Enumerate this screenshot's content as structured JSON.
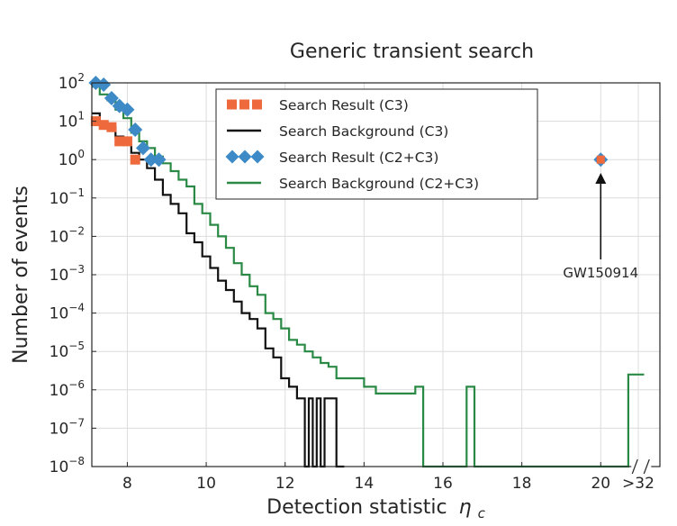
{
  "chart_data": {
    "type": "line",
    "title": "Generic transient search",
    "xlabel": "Detection statistic",
    "xlabel_symbol": "η",
    "xlabel_subscript": "c",
    "ylabel": "Number of events",
    "y_scale": "log",
    "xlim": [
      7.1,
      21.5
    ],
    "ylim": [
      1e-08,
      100
    ],
    "x_ticks": [
      8,
      10,
      12,
      14,
      16,
      18,
      20
    ],
    "x_tick_labels": [
      "8",
      "10",
      "12",
      "14",
      "16",
      "18",
      "20"
    ],
    "x_break_label": ">32",
    "y_tick_exponents": [
      -8,
      -7,
      -6,
      -5,
      -4,
      -3,
      -2,
      -1,
      0,
      1,
      2
    ],
    "grid": true,
    "legend_position": "top-center",
    "series": [
      {
        "name": "Search Result (C3)",
        "kind": "markers",
        "marker": "square",
        "color": "#ee6a3c",
        "x": [
          7.2,
          7.4,
          7.6,
          7.8,
          8.0,
          8.2
        ],
        "y": [
          10,
          8,
          7,
          3,
          3,
          1
        ]
      },
      {
        "name": "Search Background (C3)",
        "kind": "step",
        "color": "#111111",
        "x": [
          7.1,
          7.3,
          7.5,
          7.7,
          7.9,
          8.1,
          8.3,
          8.5,
          8.7,
          8.9,
          9.1,
          9.3,
          9.5,
          9.7,
          9.9,
          10.1,
          10.3,
          10.5,
          10.7,
          10.9,
          11.1,
          11.3,
          11.5,
          11.7,
          11.9,
          12.1,
          12.3,
          12.5,
          12.6,
          12.7,
          12.8,
          12.9,
          13.0,
          13.1,
          13.2,
          13.3,
          13.5
        ],
        "y": [
          16,
          10,
          7,
          4,
          2.5,
          1.5,
          1.0,
          0.6,
          0.3,
          0.12,
          0.07,
          0.04,
          0.012,
          0.007,
          0.003,
          0.0015,
          0.0007,
          0.0004,
          0.0002,
          0.0001,
          7e-05,
          4e-05,
          1.2e-05,
          7e-06,
          2e-06,
          1.2e-06,
          6e-07,
          1e-08,
          6e-07,
          1e-08,
          6e-07,
          1e-08,
          6e-07,
          6e-07,
          6e-07,
          1e-08,
          1e-08
        ]
      },
      {
        "name": "Search Result (C2+C3)",
        "kind": "markers",
        "marker": "diamond",
        "color": "#3d8ac7",
        "x": [
          7.2,
          7.4,
          7.6,
          7.8,
          8.0,
          8.2,
          8.4,
          8.6,
          8.8,
          20.0
        ],
        "y": [
          100,
          90,
          40,
          25,
          20,
          6,
          2,
          1,
          1,
          1
        ]
      },
      {
        "name": "Search Background (C2+C3)",
        "kind": "step",
        "color": "#2a8a45",
        "x": [
          7.1,
          7.3,
          7.5,
          7.7,
          7.9,
          8.1,
          8.3,
          8.5,
          8.7,
          8.9,
          9.1,
          9.3,
          9.5,
          9.7,
          9.9,
          10.1,
          10.3,
          10.5,
          10.7,
          10.9,
          11.1,
          11.3,
          11.5,
          11.7,
          11.9,
          12.1,
          12.3,
          12.5,
          12.7,
          12.9,
          13.1,
          13.3,
          13.5,
          14.0,
          14.3,
          14.6,
          15.0,
          15.3,
          15.5,
          16.6,
          16.8,
          20.7,
          21.1
        ],
        "y": [
          80,
          50,
          35,
          20,
          12,
          5,
          3,
          2,
          1.2,
          0.8,
          0.5,
          0.3,
          0.2,
          0.07,
          0.04,
          0.02,
          0.01,
          0.005,
          0.002,
          0.001,
          0.0005,
          0.0003,
          0.0001,
          7e-05,
          4e-05,
          2e-05,
          1.5e-05,
          1e-05,
          7e-06,
          5e-06,
          4e-06,
          2e-06,
          2e-06,
          1.2e-06,
          8e-07,
          8e-07,
          8e-07,
          1.2e-06,
          1e-08,
          1.2e-06,
          1e-08,
          2.5e-06,
          1e-08
        ]
      }
    ],
    "annotations": [
      {
        "text": "GW150914",
        "x": 20.0,
        "y_tail": 0.0025,
        "y_head": 0.45
      }
    ],
    "highlight_point": {
      "x": 20.0,
      "y": 1,
      "label": "GW150914"
    }
  }
}
